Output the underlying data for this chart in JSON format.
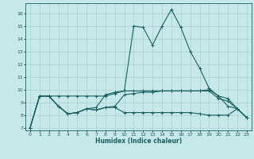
{
  "title": "",
  "xlabel": "Humidex (Indice chaleur)",
  "ylabel": "",
  "bg_color": "#c6e8e8",
  "grid_color": "#a8d0d0",
  "line_color": "#1a6060",
  "xlim": [
    -0.5,
    23.5
  ],
  "ylim": [
    6.8,
    16.8
  ],
  "yticks": [
    7,
    8,
    9,
    10,
    11,
    12,
    13,
    14,
    15,
    16
  ],
  "xticks": [
    0,
    1,
    2,
    3,
    4,
    5,
    6,
    7,
    8,
    9,
    10,
    11,
    12,
    13,
    14,
    15,
    16,
    17,
    18,
    19,
    20,
    21,
    22,
    23
  ],
  "series": [
    [
      7.0,
      9.5,
      9.5,
      8.7,
      8.1,
      8.2,
      8.5,
      8.6,
      9.6,
      9.8,
      9.9,
      15.0,
      14.9,
      13.5,
      15.0,
      16.3,
      14.9,
      13.0,
      11.7,
      10.1,
      9.5,
      8.7,
      8.5,
      7.8
    ],
    [
      7.0,
      9.5,
      9.5,
      9.5,
      9.5,
      9.5,
      9.5,
      9.5,
      9.5,
      9.7,
      9.9,
      9.9,
      9.9,
      9.9,
      9.9,
      9.9,
      9.9,
      9.9,
      9.9,
      10.0,
      9.5,
      9.3,
      8.5,
      7.8
    ],
    [
      7.0,
      9.5,
      9.5,
      8.7,
      8.1,
      8.2,
      8.5,
      8.4,
      8.6,
      8.6,
      8.2,
      8.2,
      8.2,
      8.2,
      8.2,
      8.2,
      8.2,
      8.2,
      8.1,
      8.0,
      8.0,
      8.0,
      8.5,
      7.8
    ],
    [
      7.0,
      9.5,
      9.5,
      8.7,
      8.1,
      8.2,
      8.5,
      8.4,
      8.6,
      8.7,
      9.6,
      9.7,
      9.8,
      9.8,
      9.9,
      9.9,
      9.9,
      9.9,
      9.9,
      9.9,
      9.3,
      9.1,
      8.5,
      7.8
    ]
  ]
}
